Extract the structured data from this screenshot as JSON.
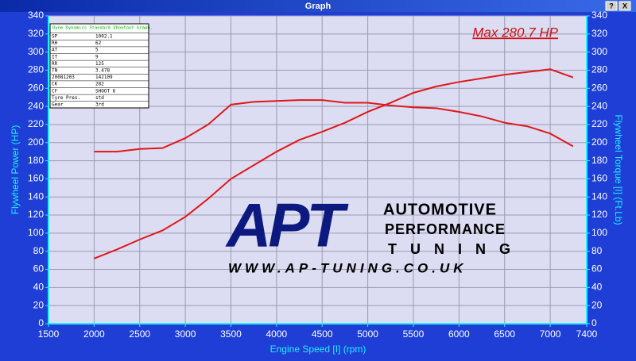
{
  "window_title": "Graph",
  "help_button": "?",
  "close_button": "X",
  "chart_data": {
    "type": "line",
    "annotation": "Max 280.7 HP",
    "xlabel": "Engine Speed [I] (rpm)",
    "ylabel": "Flywheel Power (HP)",
    "y2label": "Flywheel Torque [I] (Ft.Lb)",
    "x": [
      2000,
      2250,
      2500,
      2750,
      3000,
      3250,
      3500,
      3750,
      4000,
      4250,
      4500,
      4750,
      5000,
      5250,
      5500,
      5750,
      6000,
      6250,
      6500,
      6750,
      7000,
      7250
    ],
    "series": [
      {
        "name": "Flywheel Power (HP)",
        "color": "#e01818",
        "values": [
          72,
          82,
          93,
          103,
          118,
          138,
          160,
          175,
          190,
          203,
          212,
          222,
          234,
          244,
          255,
          262,
          267,
          271,
          275,
          278,
          281,
          272
        ]
      },
      {
        "name": "Flywheel Torque (Ft.Lb)",
        "color": "#e01818",
        "axis": "y2",
        "values": [
          190,
          190,
          193,
          194,
          205,
          220,
          242,
          245,
          246,
          247,
          247,
          244,
          244,
          241,
          239,
          238,
          234,
          229,
          222,
          218,
          210,
          196
        ]
      }
    ],
    "xlim": [
      1500,
      7400
    ],
    "xticks": [
      1500,
      2000,
      2500,
      3000,
      3500,
      4000,
      4500,
      5000,
      5500,
      6000,
      6500,
      7000,
      7400
    ],
    "ylim": [
      0,
      340
    ],
    "yticks": [
      0,
      20,
      40,
      60,
      80,
      100,
      120,
      140,
      160,
      180,
      200,
      220,
      240,
      260,
      280,
      300,
      320,
      340
    ],
    "y2lim": [
      0,
      340
    ],
    "y2ticks": [
      0,
      20,
      40,
      60,
      80,
      100,
      120,
      140,
      160,
      180,
      200,
      220,
      240,
      260,
      280,
      300,
      320,
      340
    ],
    "grid": true,
    "inset": {
      "title": "Dyne Dynamics Standard Shootout Graph.",
      "rows": [
        [
          "SP",
          "1002.1"
        ],
        [
          "RH",
          "62"
        ],
        [
          "AT",
          "5"
        ],
        [
          "IT",
          "9"
        ],
        [
          "RR",
          "125"
        ],
        [
          "TN",
          "3.478"
        ],
        [
          "20081203",
          "142109"
        ],
        [
          "CK",
          "282"
        ],
        [
          "CF",
          "SHOOT 6"
        ],
        [
          "Tyre Pres.",
          "std"
        ],
        [
          "Gear",
          "3rd"
        ]
      ]
    },
    "logo": {
      "mark": "APT",
      "line1": "AUTOMOTIVE",
      "line2": "PERFORMANCE",
      "line3": "TUNING",
      "url": "WWW.AP-TUNING.CO.UK"
    }
  }
}
